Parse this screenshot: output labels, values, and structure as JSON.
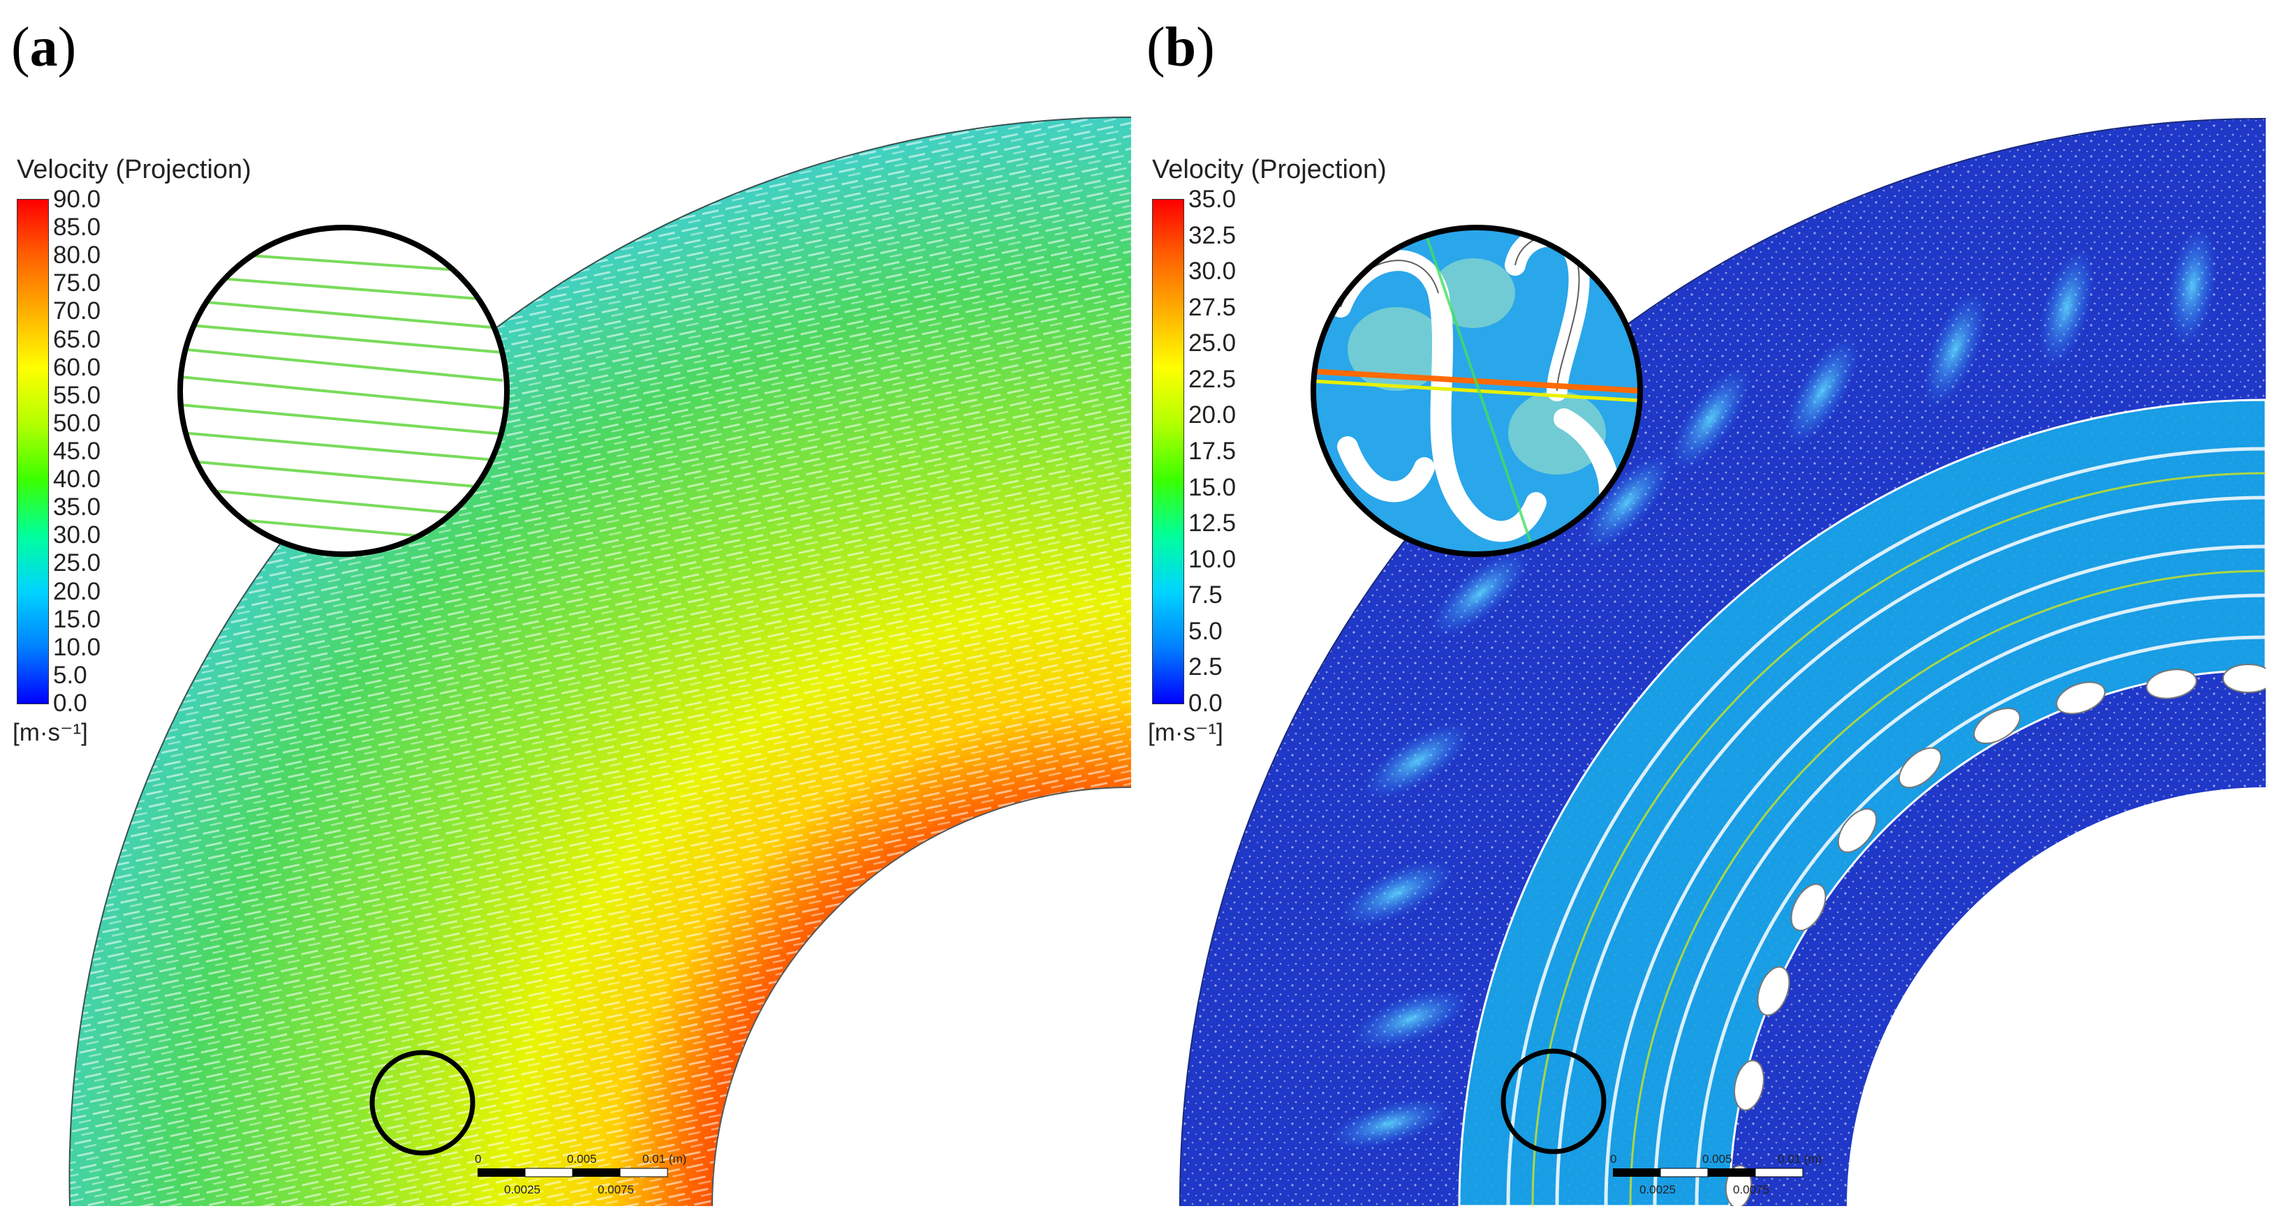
{
  "panel_a": {
    "label_open": "(",
    "label_letter": "a",
    "label_close": ")",
    "legend_title": "Velocity (Projection)",
    "ticks": [
      "90.0",
      "85.0",
      "80.0",
      "75.0",
      "70.0",
      "65.0",
      "60.0",
      "55.0",
      "50.0",
      "45.0",
      "40.0",
      "35.0",
      "30.0",
      "25.0",
      "20.0",
      "15.0",
      "10.0",
      "5.0",
      "0.0"
    ],
    "unit": "[m·s⁻¹]",
    "scale_top": [
      "0",
      "0.005",
      "0.01 (m)"
    ],
    "scale_bottom": [
      "0.0025",
      "0.0075"
    ]
  },
  "panel_b": {
    "label_open": "(",
    "label_letter": "b",
    "label_close": ")",
    "legend_title": "Velocity (Projection)",
    "ticks": [
      "35.0",
      "32.5",
      "30.0",
      "27.5",
      "25.0",
      "22.5",
      "20.0",
      "17.5",
      "15.0",
      "12.5",
      "10.0",
      "7.5",
      "5.0",
      "2.5",
      "0.0"
    ],
    "unit": "[m·s⁻¹]",
    "scale_top": [
      "0",
      "0.005",
      "0.01 (m)"
    ],
    "scale_bottom": [
      "0.0025",
      "0.0075"
    ]
  },
  "colors": {
    "colormap": [
      "#0000ff",
      "#0080ff",
      "#00d4ff",
      "#00ff9c",
      "#3cff00",
      "#b4ff00",
      "#ffff00",
      "#ffb000",
      "#ff6000",
      "#ff0000"
    ],
    "background_b": "#2038c8"
  }
}
